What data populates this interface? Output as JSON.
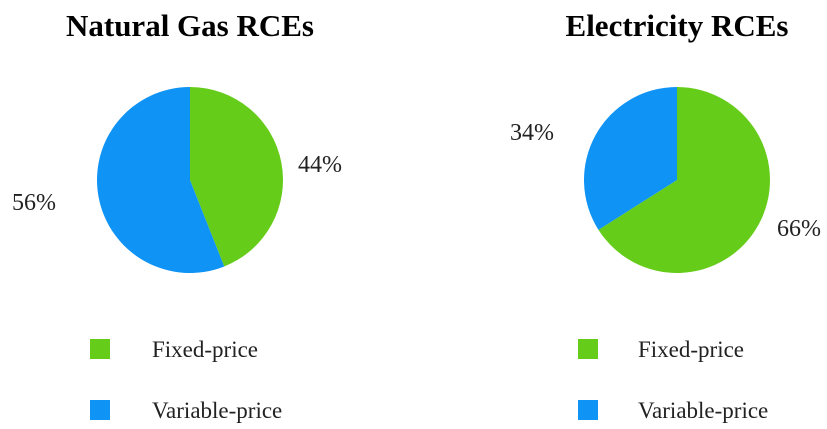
{
  "colors": {
    "fixed": "#66cc1a",
    "variable": "#0f93f5"
  },
  "chart_data": [
    {
      "type": "pie",
      "title": "Natural Gas RCEs",
      "slices": [
        {
          "label": "Fixed-price",
          "value": 44,
          "display": "44%",
          "color_key": "fixed"
        },
        {
          "label": "Variable-price",
          "value": 56,
          "display": "56%",
          "color_key": "variable"
        }
      ],
      "legend": [
        "Fixed-price",
        "Variable-price"
      ],
      "legend_position": "bottom"
    },
    {
      "type": "pie",
      "title": "Electricity RCEs",
      "slices": [
        {
          "label": "Fixed-price",
          "value": 66,
          "display": "66%",
          "color_key": "fixed"
        },
        {
          "label": "Variable-price",
          "value": 34,
          "display": "34%",
          "color_key": "variable"
        }
      ],
      "legend": [
        "Fixed-price",
        "Variable-price"
      ],
      "legend_position": "bottom"
    }
  ]
}
